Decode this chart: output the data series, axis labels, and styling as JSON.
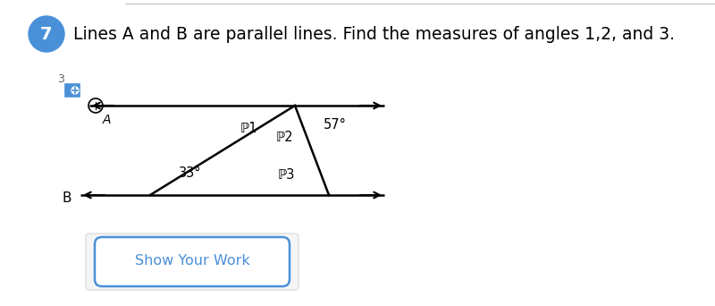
{
  "title_number": "7",
  "title_number_bg": "#4A90D9",
  "title_text": "Lines A and B are parallel lines. Find the measures of angles 1,2, and 3.",
  "title_fontsize": 13.5,
  "badge_number": "3",
  "label_A": "A",
  "label_B": "B",
  "angle1_label": "ℙ1",
  "angle2_label": "ℙ2",
  "angle3_label": "ℙ3",
  "angle57_label": "57°",
  "angle33_label": "33°",
  "line_color": "#000000",
  "text_color": "#000000",
  "bg_color": "#ffffff",
  "button_text": "Show Your Work",
  "button_border_color": "#4A90D9",
  "button_bg": "#ffffff",
  "separator_color": "#c8c8c8",
  "icon_blue": "#4A90D9",
  "icon_gray": "#666666"
}
